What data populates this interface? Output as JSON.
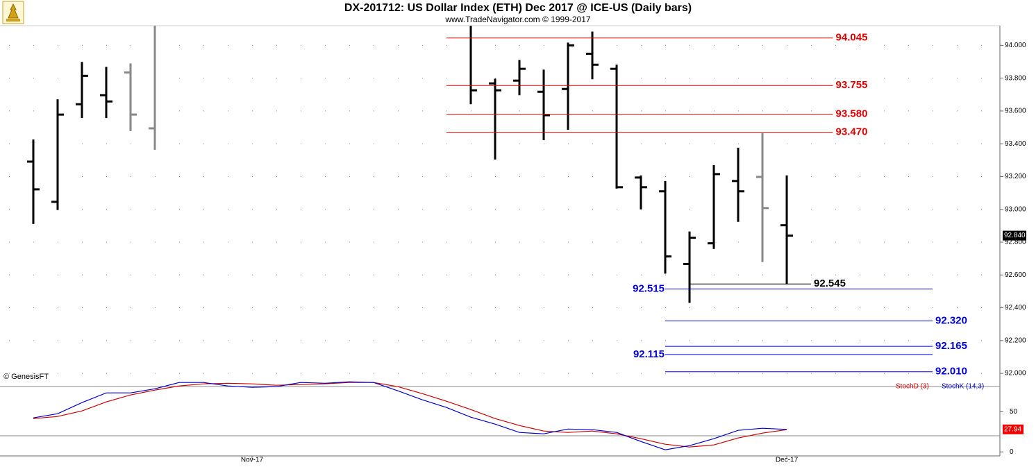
{
  "chart_data": [
    {
      "type": "ohlc",
      "title": "DX-201712:  US Dollar Index (ETH) Dec 2017 @ ICE-US  (Daily bars)",
      "subtitle": "www.TradeNavigator.com © 1999-2017",
      "annotation": "© GenesisFT",
      "x": [
        0,
        1,
        2,
        3,
        4,
        5,
        18,
        19,
        20,
        21,
        22,
        23,
        24,
        25,
        26,
        27,
        28,
        29,
        30,
        31
      ],
      "open": [
        93.291,
        93.046,
        93.641,
        93.696,
        93.835,
        93.494,
        null,
        93.768,
        93.785,
        93.717,
        93.734,
        93.949,
        93.857,
        93.194,
        93.11,
        92.667,
        92.793,
        93.173,
        93.198,
        92.903
      ],
      "high": [
        93.426,
        93.671,
        93.899,
        93.869,
        93.89,
        94.2,
        94.15,
        93.797,
        93.911,
        93.852,
        94.017,
        94.084,
        93.882,
        93.207,
        93.173,
        92.865,
        93.27,
        93.376,
        93.464,
        93.207
      ],
      "low": [
        92.911,
        92.996,
        93.557,
        93.557,
        93.477,
        93.363,
        93.641,
        93.304,
        93.696,
        93.422,
        93.485,
        93.793,
        93.127,
        93.0,
        92.608,
        92.43,
        92.759,
        92.924,
        92.679,
        92.544
      ],
      "close": [
        93.122,
        93.578,
        93.814,
        93.658,
        93.578,
        null,
        93.726,
        93.726,
        93.857,
        93.574,
        94.0,
        93.882,
        93.135,
        93.135,
        92.713,
        92.827,
        93.215,
        93.11,
        93.008,
        92.84
      ],
      "colors": [
        "#000000",
        "#000000",
        "#000000",
        "#000000",
        "#888888",
        "#888888",
        "#000000",
        "#000000",
        "#000000",
        "#000000",
        "#000000",
        "#000000",
        "#000000",
        "#000000",
        "#000000",
        "#000000",
        "#000000",
        "#000000",
        "#888888",
        "#000000"
      ],
      "xlim": [
        -1.371,
        39.77
      ],
      "xticks": [
        {
          "value": 9,
          "label": "Nov-17"
        },
        {
          "value": 31,
          "label": "Dec-17"
        }
      ],
      "ylim": [
        91.92,
        94.12
      ],
      "yticks": [
        {
          "value": 92.0,
          "label": "92.000"
        },
        {
          "value": 92.2,
          "label": "92.200"
        },
        {
          "value": 92.4,
          "label": "92.400"
        },
        {
          "value": 92.6,
          "label": "92.600"
        },
        {
          "value": 92.8,
          "label": "92.800"
        },
        {
          "value": 93.0,
          "label": "93.000"
        },
        {
          "value": 93.2,
          "label": "93.200"
        },
        {
          "value": 93.4,
          "label": "93.400"
        },
        {
          "value": 93.6,
          "label": "93.600"
        },
        {
          "value": 93.8,
          "label": "93.800"
        },
        {
          "value": 94.0,
          "label": "94.000"
        }
      ],
      "last_value": {
        "value": 92.84,
        "label": "92.840"
      },
      "grid": true,
      "levels": [
        {
          "value": 94.045,
          "label": "94.045",
          "color": "#e00000",
          "x_range": [
            17,
            32.9
          ],
          "label_side": "right"
        },
        {
          "value": 93.755,
          "label": "93.755",
          "color": "#e00000",
          "x_range": [
            17,
            32.9
          ],
          "label_side": "right"
        },
        {
          "value": 93.58,
          "label": "93.580",
          "color": "#e00000",
          "x_range": [
            17,
            32.9
          ],
          "label_side": "right"
        },
        {
          "value": 93.47,
          "label": "93.470",
          "color": "#e00000",
          "x_range": [
            17,
            32.9
          ],
          "label_side": "right"
        },
        {
          "value": 92.545,
          "label": "92.545",
          "color": "#000000",
          "x_range": [
            27,
            32
          ],
          "label_side": "right"
        },
        {
          "value": 92.515,
          "label": "92.515",
          "color": "#0000dd",
          "x_range": [
            26,
            37
          ],
          "label_side": "left"
        },
        {
          "value": 92.32,
          "label": "92.320",
          "color": "#0000dd",
          "x_range": [
            26,
            37
          ],
          "label_side": "right"
        },
        {
          "value": 92.165,
          "label": "92.165",
          "color": "#0000dd",
          "x_range": [
            26,
            37
          ],
          "label_side": "right"
        },
        {
          "value": 92.115,
          "label": "92.115",
          "color": "#0000dd",
          "x_range": [
            26,
            37
          ],
          "label_side": "left"
        },
        {
          "value": 92.01,
          "label": "92.010",
          "color": "#0000dd",
          "x_range": [
            26,
            37
          ],
          "label_side": "right"
        }
      ]
    },
    {
      "type": "line",
      "x": [
        0,
        1,
        2,
        3,
        4,
        5,
        6,
        7,
        8,
        9,
        10,
        11,
        12,
        13,
        14,
        15,
        16,
        17,
        18,
        19,
        20,
        21,
        22,
        23,
        24,
        25,
        26,
        27,
        28,
        29,
        30,
        31
      ],
      "series": [
        {
          "name": "StochD (3)",
          "color": "#cc0000",
          "values": [
            41.4,
            44.0,
            50.9,
            62.1,
            70.7,
            76.7,
            81.9,
            84.5,
            85.3,
            84.5,
            82.8,
            83.6,
            84.5,
            86.2,
            86.2,
            81.0,
            72.4,
            62.9,
            52.6,
            41.4,
            32.8,
            25.9,
            24.1,
            25.9,
            22.4,
            16.4,
            9.5,
            6.0,
            8.6,
            17.2,
            23.3,
            27.6
          ]
        },
        {
          "name": "StochK (14,3)",
          "color": "#0000cc",
          "values": [
            42.2,
            47.4,
            61.2,
            73.3,
            73.3,
            78.4,
            86.2,
            86.2,
            81.9,
            80.2,
            81.0,
            86.2,
            85.3,
            87.1,
            86.2,
            75.9,
            64.7,
            55.2,
            43.1,
            34.5,
            24.1,
            22.4,
            28.4,
            27.6,
            24.1,
            12.9,
            2.6,
            7.8,
            16.4,
            26.7,
            29.3,
            27.94
          ]
        }
      ],
      "xlim": [
        -1.371,
        39.77
      ],
      "ylim": [
        -5,
        95
      ],
      "yticks": [
        50,
        0
      ],
      "hlines": [
        20
      ],
      "last_value": 27.94
    }
  ]
}
